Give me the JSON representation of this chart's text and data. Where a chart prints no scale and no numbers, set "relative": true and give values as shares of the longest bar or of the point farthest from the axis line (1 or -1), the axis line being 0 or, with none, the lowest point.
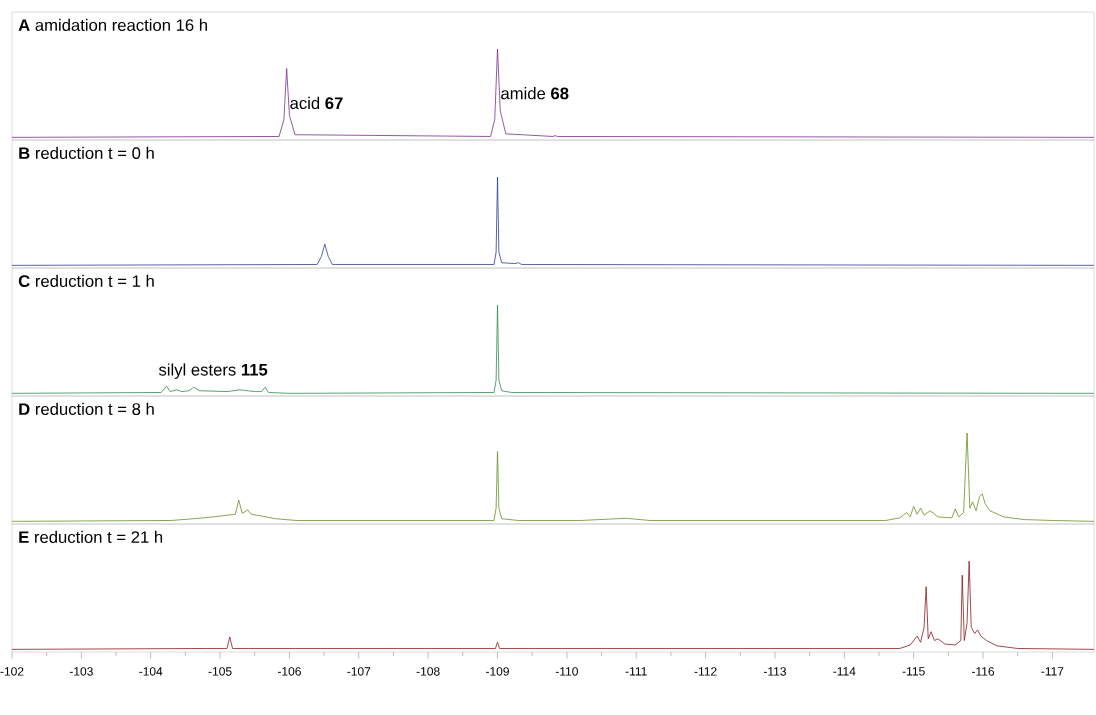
{
  "chart_data": [
    {
      "type": "line",
      "relative": true,
      "title": "**A** amidation reaction 16 h",
      "color": "#7b2d8b",
      "xlim": [
        -102,
        -117.6
      ],
      "tick_labels": false,
      "x": [
        -102,
        -105.85,
        -105.92,
        -105.96,
        -106.0,
        -106.08,
        -108.9,
        -108.96,
        -109.0,
        -109.04,
        -109.12,
        -109.8,
        -109.83,
        -109.86,
        -117.6
      ],
      "values": [
        0,
        0.01,
        0.2,
        0.78,
        0.25,
        0.03,
        0.01,
        0.2,
        1,
        0.3,
        0.04,
        0.01,
        0.02,
        0.01,
        0
      ],
      "annotations": [
        {
          "text": "acid **67**",
          "x": -105.96,
          "y": 0.78
        },
        {
          "text": "amide **68**",
          "x": -109.0,
          "y": 1
        }
      ]
    },
    {
      "type": "line",
      "relative": true,
      "title": "**B** reduction t = 0 h",
      "color": "#2e3f8f",
      "xlim": [
        -102,
        -117.6
      ],
      "tick_labels": false,
      "x": [
        -102,
        -106.4,
        -106.46,
        -106.51,
        -106.56,
        -106.62,
        -108.95,
        -108.98,
        -109.0,
        -109.02,
        -109.06,
        -109.25,
        -109.3,
        -109.35,
        -117.6
      ],
      "values": [
        0,
        0.01,
        0.1,
        0.24,
        0.1,
        0.01,
        0.01,
        0.15,
        1,
        0.15,
        0.03,
        0.02,
        0.03,
        0.01,
        0
      ]
    },
    {
      "type": "line",
      "relative": true,
      "title": "**C** reduction t = 1 h",
      "color": "#2e8b57",
      "xlim": [
        -102,
        -117.6
      ],
      "tick_labels": false,
      "x": [
        -102,
        -104.15,
        -104.23,
        -104.28,
        -104.38,
        -104.45,
        -104.55,
        -104.62,
        -104.7,
        -105.1,
        -105.29,
        -105.5,
        -105.6,
        -105.65,
        -105.7,
        -106.0,
        -108.95,
        -108.98,
        -109.0,
        -109.02,
        -109.06,
        -109.2,
        -117.6
      ],
      "values": [
        0,
        0.01,
        0.08,
        0.02,
        0.04,
        0.02,
        0.03,
        0.07,
        0.03,
        0.02,
        0.04,
        0.02,
        0.02,
        0.07,
        0.01,
        0,
        0.01,
        0.15,
        1,
        0.15,
        0.03,
        0.01,
        0
      ],
      "annotations": [
        {
          "text": "silyl esters **115**",
          "x": -104.9,
          "y": 0.08
        }
      ]
    },
    {
      "type": "line",
      "relative": true,
      "title": "**D** reduction t = 8 h",
      "color": "#6b8e23",
      "xlim": [
        -102,
        -117.6
      ],
      "tick_labels": false,
      "x": [
        -102,
        -104.3,
        -104.62,
        -104.9,
        -105.1,
        -105.22,
        -105.27,
        -105.32,
        -105.4,
        -105.45,
        -105.6,
        -105.8,
        -106.1,
        -108.95,
        -108.98,
        -109.0,
        -109.02,
        -109.06,
        -109.3,
        -110.2,
        -110.6,
        -110.85,
        -111.2,
        -114.6,
        -114.8,
        -114.9,
        -114.95,
        -115.0,
        -115.05,
        -115.1,
        -115.15,
        -115.24,
        -115.35,
        -115.55,
        -115.6,
        -115.65,
        -115.72,
        -115.77,
        -115.81,
        -115.85,
        -115.9,
        -115.95,
        -115.99,
        -116.03,
        -116.1,
        -116.3,
        -116.6,
        -117.0,
        -117.6
      ],
      "values": [
        0,
        0.01,
        0.03,
        0.05,
        0.07,
        0.08,
        0.24,
        0.09,
        0.13,
        0.08,
        0.06,
        0.03,
        0.01,
        0.01,
        0.15,
        0.79,
        0.15,
        0.03,
        0.01,
        0.01,
        0.025,
        0.035,
        0.01,
        0.01,
        0.04,
        0.1,
        0.05,
        0.17,
        0.08,
        0.15,
        0.07,
        0.12,
        0.05,
        0.04,
        0.14,
        0.05,
        0.1,
        1,
        0.15,
        0.22,
        0.12,
        0.28,
        0.31,
        0.2,
        0.12,
        0.05,
        0.02,
        0.01,
        0
      ]
    },
    {
      "type": "line",
      "relative": true,
      "title": "**E** reduction t = 21 h",
      "color": "#8b1a1a",
      "xlim": [
        -102,
        -117.6
      ],
      "tick_labels": "x",
      "xticks": [
        -102,
        -103,
        -104,
        -105,
        -106,
        -107,
        -108,
        -109,
        -110,
        -111,
        -112,
        -113,
        -114,
        -115,
        -116,
        -117
      ],
      "x": [
        -102,
        -104.8,
        -105.1,
        -105.14,
        -105.18,
        -108.97,
        -109.0,
        -109.03,
        -114.8,
        -114.95,
        -115.05,
        -115.1,
        -115.15,
        -115.18,
        -115.21,
        -115.25,
        -115.3,
        -115.35,
        -115.45,
        -115.6,
        -115.68,
        -115.7,
        -115.73,
        -115.77,
        -115.8,
        -115.83,
        -115.88,
        -115.92,
        -115.97,
        -116.05,
        -116.2,
        -116.5,
        -117.6
      ],
      "values": [
        0,
        0.01,
        0.01,
        0.14,
        0.01,
        0.01,
        0.08,
        0.01,
        0.01,
        0.05,
        0.15,
        0.08,
        0.25,
        0.71,
        0.12,
        0.2,
        0.1,
        0.12,
        0.06,
        0.05,
        0.1,
        0.84,
        0.1,
        0.3,
        1,
        0.25,
        0.18,
        0.22,
        0.15,
        0.1,
        0.04,
        0.01,
        0
      ]
    }
  ]
}
